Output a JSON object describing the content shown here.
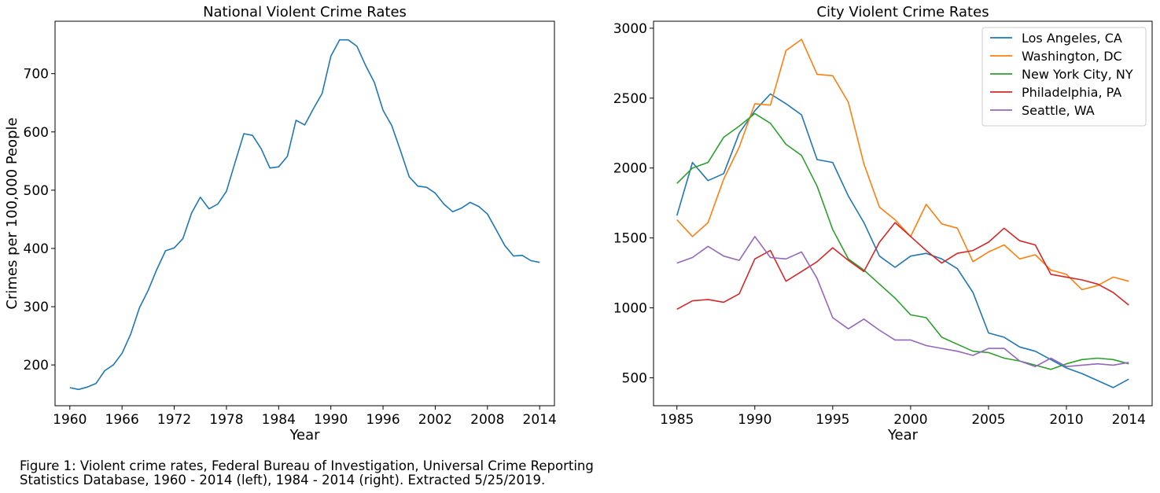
{
  "caption": {
    "line1": "Figure 1: Violent crime rates, Federal Bureau of Investigation, Universal Crime Reporting",
    "line2": "Statistics Database, 1960 - 2014 (left), 1984 - 2014 (right). Extracted 5/25/2019."
  },
  "chart_data": [
    {
      "type": "line",
      "title": "National Violent Crime Rates",
      "xlabel": "Year",
      "ylabel": "Crimes per 100,000 People",
      "xlim": [
        1958.3,
        2015.7
      ],
      "ylim": [
        130,
        790
      ],
      "xticks": [
        1960,
        1966,
        1972,
        1978,
        1984,
        1990,
        1996,
        2002,
        2008,
        2014
      ],
      "yticks": [
        200,
        300,
        400,
        500,
        600,
        700
      ],
      "grid": false,
      "series": [
        {
          "color": "#1f77b4",
          "x": [
            1960,
            1961,
            1962,
            1963,
            1964,
            1965,
            1966,
            1967,
            1968,
            1969,
            1970,
            1971,
            1972,
            1973,
            1974,
            1975,
            1976,
            1977,
            1978,
            1979,
            1980,
            1981,
            1982,
            1983,
            1984,
            1985,
            1986,
            1987,
            1988,
            1989,
            1990,
            1991,
            1992,
            1993,
            1994,
            1995,
            1996,
            1997,
            1998,
            1999,
            2000,
            2001,
            2002,
            2003,
            2004,
            2005,
            2006,
            2007,
            2008,
            2009,
            2010,
            2011,
            2012,
            2013,
            2014
          ],
          "values": [
            161,
            158,
            162,
            168,
            190,
            200,
            220,
            253,
            298,
            328,
            364,
            396,
            401,
            417,
            461,
            488,
            468,
            476,
            498,
            548,
            597,
            594,
            571,
            538,
            540,
            558,
            620,
            612,
            640,
            666,
            730,
            758,
            758,
            747,
            714,
            685,
            637,
            611,
            568,
            523,
            507,
            505,
            495,
            476,
            463,
            469,
            479,
            472,
            459,
            432,
            405,
            387,
            388,
            379,
            376
          ]
        }
      ]
    },
    {
      "type": "line",
      "title": "City Violent Crime Rates",
      "xlabel": "Year",
      "ylabel": "",
      "xlim": [
        1983.5,
        2015.5
      ],
      "ylim": [
        300,
        3050
      ],
      "xticks": [
        1985,
        1990,
        1995,
        2000,
        2005,
        2010,
        2014
      ],
      "yticks": [
        500,
        1000,
        1500,
        2000,
        2500,
        3000
      ],
      "grid": false,
      "legend": "top-right",
      "x": [
        1985,
        1986,
        1987,
        1988,
        1989,
        1990,
        1991,
        1992,
        1993,
        1994,
        1995,
        1996,
        1997,
        1998,
        1999,
        2000,
        2001,
        2002,
        2003,
        2004,
        2005,
        2006,
        2007,
        2008,
        2009,
        2010,
        2011,
        2012,
        2013,
        2014
      ],
      "series": [
        {
          "name": "Los Angeles, CA",
          "color": "#1f77b4",
          "values": [
            1660,
            2040,
            1910,
            1960,
            2250,
            2410,
            2530,
            2460,
            2380,
            2060,
            2040,
            1800,
            1610,
            1370,
            1290,
            1370,
            1390,
            1350,
            1280,
            1110,
            820,
            790,
            720,
            690,
            630,
            570,
            530,
            480,
            430,
            490
          ]
        },
        {
          "name": "Washington, DC",
          "color": "#ff7f0e",
          "values": [
            1630,
            1510,
            1610,
            1920,
            2150,
            2460,
            2450,
            2840,
            2920,
            2670,
            2660,
            2470,
            2030,
            1720,
            1630,
            1510,
            1740,
            1600,
            1570,
            1330,
            1400,
            1450,
            1350,
            1380,
            1270,
            1240,
            1130,
            1160,
            1220,
            1190
          ]
        },
        {
          "name": "New York City, NY",
          "color": "#2ca02c",
          "values": [
            1890,
            2000,
            2040,
            2220,
            2300,
            2390,
            2320,
            2170,
            2090,
            1870,
            1560,
            1350,
            1270,
            1170,
            1070,
            950,
            930,
            790,
            740,
            690,
            680,
            640,
            620,
            590,
            560,
            600,
            630,
            640,
            630,
            600
          ]
        },
        {
          "name": "Philadelphia, PA",
          "color": "#d62728",
          "values": [
            990,
            1050,
            1060,
            1040,
            1100,
            1350,
            1410,
            1190,
            1260,
            1330,
            1430,
            1340,
            1260,
            1470,
            1610,
            1510,
            1410,
            1320,
            1390,
            1410,
            1470,
            1570,
            1480,
            1450,
            1240,
            1220,
            1200,
            1170,
            1110,
            1020
          ]
        },
        {
          "name": "Seattle, WA",
          "color": "#9467bd",
          "values": [
            1320,
            1360,
            1440,
            1370,
            1340,
            1510,
            1360,
            1350,
            1400,
            1210,
            930,
            850,
            920,
            840,
            770,
            770,
            730,
            710,
            690,
            660,
            710,
            710,
            620,
            580,
            640,
            580,
            590,
            600,
            590,
            610
          ]
        }
      ]
    }
  ]
}
